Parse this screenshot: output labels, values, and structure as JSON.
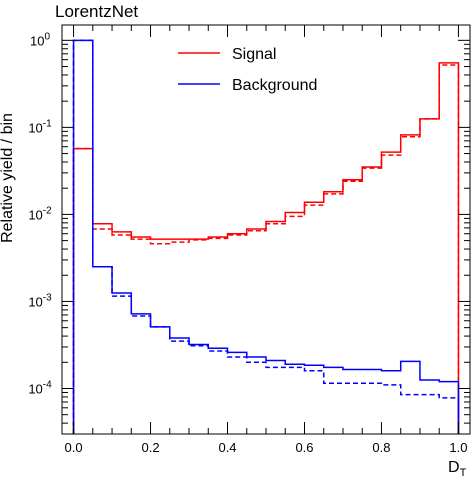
{
  "chart_data": {
    "type": "line",
    "title": "LorentzNet",
    "xlabel_main": "D",
    "xlabel_sub": "T",
    "ylabel": "Relative yield / bin",
    "xlim": [
      -0.03,
      1.03
    ],
    "ylim": [
      3e-05,
      1.5
    ],
    "yscale": "log",
    "grid": false,
    "legend_position": "top-center",
    "bin_edges": [
      0.0,
      0.05,
      0.1,
      0.15,
      0.2,
      0.25,
      0.3,
      0.35,
      0.4,
      0.45,
      0.5,
      0.55,
      0.6,
      0.65,
      0.7,
      0.75,
      0.8,
      0.85,
      0.9,
      0.95,
      1.0
    ],
    "x_ticks": [
      {
        "value": 0.0,
        "label": "0.0"
      },
      {
        "value": 0.2,
        "label": "0.2"
      },
      {
        "value": 0.4,
        "label": "0.4"
      },
      {
        "value": 0.6,
        "label": "0.6"
      },
      {
        "value": 0.8,
        "label": "0.8"
      },
      {
        "value": 1.0,
        "label": "1.0"
      }
    ],
    "y_ticks": [
      {
        "value": 1,
        "base": "10",
        "exp": "0"
      },
      {
        "value": 0.1,
        "base": "10",
        "exp": "-1"
      },
      {
        "value": 0.01,
        "base": "10",
        "exp": "-2"
      },
      {
        "value": 0.001,
        "base": "10",
        "exp": "-3"
      },
      {
        "value": 0.0001,
        "base": "10",
        "exp": "-4"
      }
    ],
    "series": [
      {
        "name": "Signal",
        "color": "#ff0000",
        "style": "solid",
        "values": [
          0.057,
          0.0078,
          0.0063,
          0.0055,
          0.0052,
          0.0052,
          0.0052,
          0.0055,
          0.006,
          0.0068,
          0.0083,
          0.0105,
          0.0138,
          0.0182,
          0.025,
          0.035,
          0.052,
          0.082,
          0.125,
          0.55
        ]
      },
      {
        "color": "#ff0000",
        "style": "dashed",
        "values": [
          0.057,
          0.0068,
          0.0058,
          0.0052,
          0.0046,
          0.0048,
          0.0051,
          0.0053,
          0.0058,
          0.0065,
          0.0078,
          0.0095,
          0.0128,
          0.0172,
          0.024,
          0.034,
          0.048,
          0.078,
          0.125,
          0.52
        ]
      },
      {
        "name": "Background",
        "color": "#0000ff",
        "style": "solid",
        "values": [
          1.0,
          0.0025,
          0.00125,
          0.00072,
          0.00051,
          0.00038,
          0.00032,
          0.00029,
          0.00026,
          0.00023,
          0.00021,
          0.00019,
          0.000185,
          0.000175,
          0.000165,
          0.000165,
          0.00016,
          0.000205,
          0.000125,
          0.00012
        ]
      },
      {
        "color": "#0000ff",
        "style": "dashed",
        "values": [
          1.0,
          0.0025,
          0.00115,
          0.00068,
          0.00051,
          0.00035,
          0.00031,
          0.00027,
          0.00023,
          0.0002,
          0.000175,
          0.000175,
          0.00016,
          0.000115,
          0.000115,
          0.000115,
          0.00011,
          8.5e-05,
          8.5e-05,
          7.8e-05
        ]
      }
    ]
  }
}
